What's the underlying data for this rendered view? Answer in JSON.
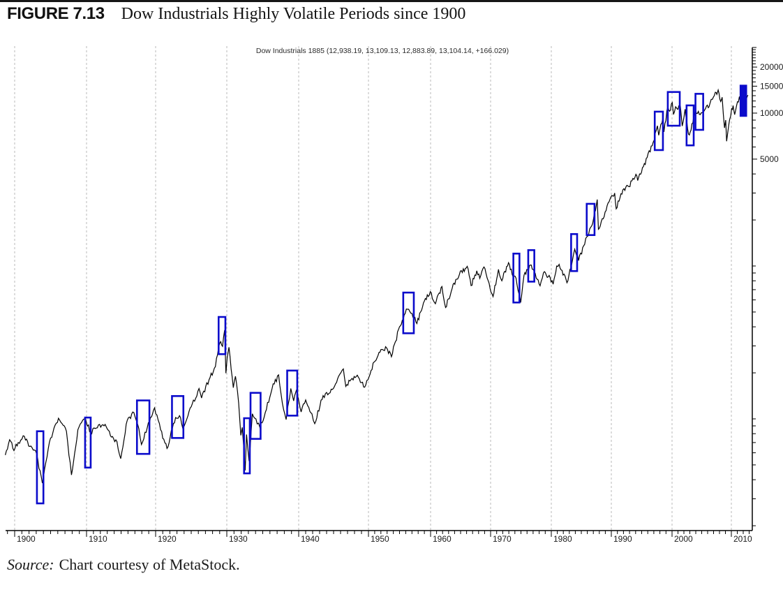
{
  "figure": {
    "label": "FIGURE 7.13",
    "title": "Dow Industrials Highly Volatile Periods since 1900"
  },
  "source": {
    "prefix": "Source:",
    "text": "Chart courtesy of MetaStock."
  },
  "chart_data": {
    "type": "line",
    "scale": "semilog",
    "title": "Dow Industrials 1885 (12,938.19, 13,109.13, 12,883.89, 13,104.14, +166.029)",
    "x_axis": {
      "tick_years": [
        1900,
        1910,
        1920,
        1930,
        1940,
        1950,
        1960,
        1970,
        1980,
        1990,
        2000,
        2010
      ],
      "range_years": [
        1898.7,
        2013.5
      ],
      "grid": "dashed-vertical-per-decade"
    },
    "y_axis": {
      "side": "right",
      "scale": "log",
      "labeled_ticks": [
        5000,
        10000,
        15000,
        20000
      ],
      "visible_range": [
        19,
        27000
      ]
    },
    "series": [
      {
        "name": "Dow Jones Industrial Average",
        "points": [
          [
            1898.7,
            58
          ],
          [
            1899.3,
            73
          ],
          [
            1899.9,
            62
          ],
          [
            1900.5,
            70
          ],
          [
            1901.35,
            77
          ],
          [
            1902.1,
            66
          ],
          [
            1902.9,
            62
          ],
          [
            1903.85,
            38
          ],
          [
            1905.0,
            75
          ],
          [
            1906.1,
            101
          ],
          [
            1906.6,
            93
          ],
          [
            1907.2,
            83
          ],
          [
            1907.9,
            43
          ],
          [
            1908.8,
            85
          ],
          [
            1909.8,
            100
          ],
          [
            1910.6,
            82
          ],
          [
            1911.4,
            87
          ],
          [
            1912.7,
            92
          ],
          [
            1913.6,
            76
          ],
          [
            1914.4,
            71
          ],
          [
            1914.95,
            55
          ],
          [
            1915.9,
            98
          ],
          [
            1916.85,
            110
          ],
          [
            1917.4,
            92
          ],
          [
            1917.95,
            68
          ],
          [
            1918.8,
            88
          ],
          [
            1919.4,
            103
          ],
          [
            1919.85,
            118
          ],
          [
            1920.7,
            85
          ],
          [
            1921.6,
            64
          ],
          [
            1922.8,
            102
          ],
          [
            1923.35,
            105
          ],
          [
            1923.8,
            87
          ],
          [
            1925.0,
            120
          ],
          [
            1926.1,
            158
          ],
          [
            1926.45,
            137
          ],
          [
            1927.5,
            180
          ],
          [
            1928.4,
            220
          ],
          [
            1928.85,
            295
          ],
          [
            1929.15,
            320
          ],
          [
            1929.4,
            298
          ],
          [
            1929.7,
            381
          ],
          [
            1929.87,
            199
          ],
          [
            1930.05,
            250
          ],
          [
            1930.3,
            294
          ],
          [
            1930.9,
            160
          ],
          [
            1931.2,
            190
          ],
          [
            1931.5,
            150
          ],
          [
            1931.8,
            100
          ],
          [
            1931.95,
            78
          ],
          [
            1932.15,
            88
          ],
          [
            1932.55,
            46
          ],
          [
            1932.75,
            79
          ],
          [
            1933.1,
            53
          ],
          [
            1933.55,
            108
          ],
          [
            1934.05,
            100
          ],
          [
            1934.6,
            88
          ],
          [
            1935.2,
            103
          ],
          [
            1936.3,
            158
          ],
          [
            1937.2,
            194
          ],
          [
            1937.9,
            115
          ],
          [
            1938.25,
            99
          ],
          [
            1938.9,
            158
          ],
          [
            1939.3,
            131
          ],
          [
            1939.7,
            155
          ],
          [
            1940.35,
            111
          ],
          [
            1941.0,
            133
          ],
          [
            1941.9,
            108
          ],
          [
            1942.3,
            93
          ],
          [
            1943.5,
            142
          ],
          [
            1944.5,
            148
          ],
          [
            1945.9,
            196
          ],
          [
            1946.4,
            212
          ],
          [
            1946.75,
            163
          ],
          [
            1947.5,
            181
          ],
          [
            1948.4,
            193
          ],
          [
            1949.45,
            161
          ],
          [
            1950.9,
            235
          ],
          [
            1951.7,
            272
          ],
          [
            1952.9,
            292
          ],
          [
            1953.7,
            255
          ],
          [
            1955.0,
            400
          ],
          [
            1955.9,
            488
          ],
          [
            1956.3,
            521
          ],
          [
            1957.0,
            490
          ],
          [
            1957.8,
            420
          ],
          [
            1959.0,
            590
          ],
          [
            1959.95,
            679
          ],
          [
            1960.8,
            566
          ],
          [
            1961.9,
            734
          ],
          [
            1962.5,
            535
          ],
          [
            1963.6,
            715
          ],
          [
            1964.8,
            880
          ],
          [
            1966.1,
            995
          ],
          [
            1966.75,
            744
          ],
          [
            1967.7,
            930
          ],
          [
            1968.2,
            830
          ],
          [
            1968.9,
            985
          ],
          [
            1969.6,
            800
          ],
          [
            1970.4,
            631
          ],
          [
            1971.3,
            950
          ],
          [
            1971.85,
            800
          ],
          [
            1972.95,
            1051
          ],
          [
            1973.7,
            850
          ],
          [
            1974.2,
            830
          ],
          [
            1974.95,
            577
          ],
          [
            1975.5,
            870
          ],
          [
            1976.7,
            1014
          ],
          [
            1978.15,
            742
          ],
          [
            1978.7,
            900
          ],
          [
            1979.8,
            840
          ],
          [
            1980.3,
            760
          ],
          [
            1980.9,
            1000
          ],
          [
            1981.3,
            1024
          ],
          [
            1982.6,
            777
          ],
          [
            1983.9,
            1287
          ],
          [
            1984.55,
            1086
          ],
          [
            1985.9,
            1550
          ],
          [
            1986.9,
            1900
          ],
          [
            1987.65,
            2722
          ],
          [
            1987.85,
            1738
          ],
          [
            1988.8,
            2100
          ],
          [
            1989.8,
            2750
          ],
          [
            1990.55,
            2999
          ],
          [
            1990.8,
            2365
          ],
          [
            1991.9,
            3150
          ],
          [
            1992.9,
            3300
          ],
          [
            1994.05,
            3978
          ],
          [
            1994.35,
            3620
          ],
          [
            1995.9,
            5117
          ],
          [
            1996.9,
            6448
          ],
          [
            1997.6,
            8259
          ],
          [
            1997.8,
            7161
          ],
          [
            1998.5,
            9337
          ],
          [
            1998.67,
            7539
          ],
          [
            1999.3,
            11000
          ],
          [
            1999.6,
            10300
          ],
          [
            2000.03,
            11722
          ],
          [
            2000.25,
            9800
          ],
          [
            2000.6,
            11000
          ],
          [
            2001.0,
            10600
          ],
          [
            2001.4,
            11100
          ],
          [
            2001.72,
            8236
          ],
          [
            2002.2,
            10600
          ],
          [
            2002.78,
            7286
          ],
          [
            2003.2,
            7740
          ],
          [
            2003.95,
            10450
          ],
          [
            2004.6,
            9800
          ],
          [
            2005.5,
            10500
          ],
          [
            2006.4,
            11600
          ],
          [
            2006.8,
            12300
          ],
          [
            2007.3,
            13700
          ],
          [
            2007.55,
            13250
          ],
          [
            2007.78,
            14164
          ],
          [
            2008.2,
            11900
          ],
          [
            2008.45,
            12700
          ],
          [
            2008.85,
            8000
          ],
          [
            2009.05,
            9000
          ],
          [
            2009.2,
            6547
          ],
          [
            2010.05,
            10700
          ],
          [
            2010.3,
            11205
          ],
          [
            2010.55,
            9774
          ],
          [
            2011.35,
            12810
          ],
          [
            2011.6,
            11600
          ],
          [
            2011.75,
            10655
          ],
          [
            2012.2,
            13200
          ],
          [
            2012.55,
            12400
          ],
          [
            2012.8,
            13104
          ]
        ]
      }
    ],
    "highlighted_periods": [
      {
        "from_year": 1903.1,
        "to_year": 1904.0,
        "value_top": 83,
        "value_bottom": 28,
        "filled": false
      },
      {
        "from_year": 1909.8,
        "to_year": 1910.6,
        "value_top": 102,
        "value_bottom": 48,
        "filled": false
      },
      {
        "from_year": 1917.3,
        "to_year": 1919.1,
        "value_top": 132,
        "value_bottom": 59,
        "filled": false
      },
      {
        "from_year": 1922.3,
        "to_year": 1923.9,
        "value_top": 141,
        "value_bottom": 75,
        "filled": false
      },
      {
        "from_year": 1928.85,
        "to_year": 1929.8,
        "value_top": 464,
        "value_bottom": 265,
        "filled": false
      },
      {
        "from_year": 1932.4,
        "to_year": 1933.2,
        "value_top": 101,
        "value_bottom": 44,
        "filled": false
      },
      {
        "from_year": 1933.3,
        "to_year": 1934.7,
        "value_top": 148,
        "value_bottom": 74,
        "filled": false
      },
      {
        "from_year": 1938.4,
        "to_year": 1939.8,
        "value_top": 207,
        "value_bottom": 105,
        "filled": false
      },
      {
        "from_year": 1955.6,
        "to_year": 1957.3,
        "value_top": 670,
        "value_bottom": 363,
        "filled": false
      },
      {
        "from_year": 1973.75,
        "to_year": 1974.75,
        "value_top": 1205,
        "value_bottom": 577,
        "filled": false
      },
      {
        "from_year": 1976.2,
        "to_year": 1977.2,
        "value_top": 1270,
        "value_bottom": 790,
        "filled": false
      },
      {
        "from_year": 1983.3,
        "to_year": 1984.3,
        "value_top": 1617,
        "value_bottom": 926,
        "filled": false
      },
      {
        "from_year": 1985.9,
        "to_year": 1987.2,
        "value_top": 2550,
        "value_bottom": 1593,
        "filled": false
      },
      {
        "from_year": 1997.15,
        "to_year": 1998.5,
        "value_top": 10220,
        "value_bottom": 5730,
        "filled": false
      },
      {
        "from_year": 1999.3,
        "to_year": 2001.3,
        "value_top": 13740,
        "value_bottom": 8270,
        "filled": false
      },
      {
        "from_year": 2002.45,
        "to_year": 2003.65,
        "value_top": 11230,
        "value_bottom": 6150,
        "filled": false
      },
      {
        "from_year": 2003.95,
        "to_year": 2005.25,
        "value_top": 13370,
        "value_bottom": 7770,
        "filled": false
      },
      {
        "from_year": 2011.55,
        "to_year": 2012.5,
        "value_top": 15120,
        "value_bottom": 9590,
        "filled": true
      }
    ],
    "colors": {
      "line": "#000000",
      "highlight": "#0b0bcb",
      "grid": "#b8b8b8",
      "axis": "#000000",
      "tick_label": "#1a1a1a"
    }
  }
}
